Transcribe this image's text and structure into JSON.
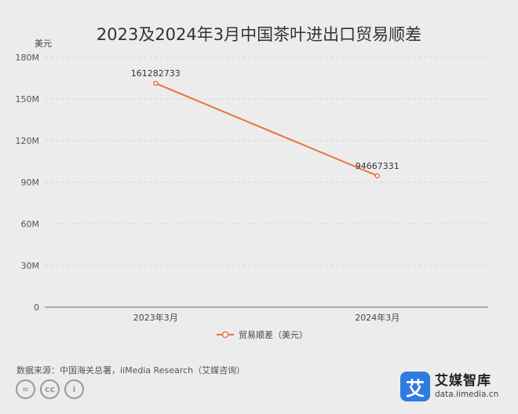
{
  "chart_data": {
    "type": "line",
    "title": "2023及2024年3月中国茶叶进出口贸易顺差",
    "ylabel": "美元",
    "categories": [
      "2023年3月",
      "2024年3月"
    ],
    "series": [
      {
        "name": "贸易顺差（美元）",
        "values": [
          161282733,
          94667331
        ],
        "data_labels": [
          "161282733",
          "94667331"
        ]
      }
    ],
    "ylim": [
      0,
      180000000
    ],
    "yticks": [
      0,
      30000000,
      60000000,
      90000000,
      120000000,
      150000000,
      180000000
    ],
    "ytick_labels": [
      "0",
      "30M",
      "60M",
      "90M",
      "120M",
      "150M",
      "180M"
    ],
    "grid": true,
    "legend": "bottom-center",
    "colors": {
      "series": "#e8743b",
      "grid": "#d4d4d4",
      "axis": "#666666"
    }
  },
  "footer": {
    "source": "数据来源：中国海关总署，iiMedia Research（艾媒咨询）",
    "cc_symbols": [
      "=",
      "cc",
      "i"
    ]
  },
  "brand": {
    "logo_char": "艾",
    "name": "艾媒智库",
    "url": "data.iimedia.cn"
  }
}
